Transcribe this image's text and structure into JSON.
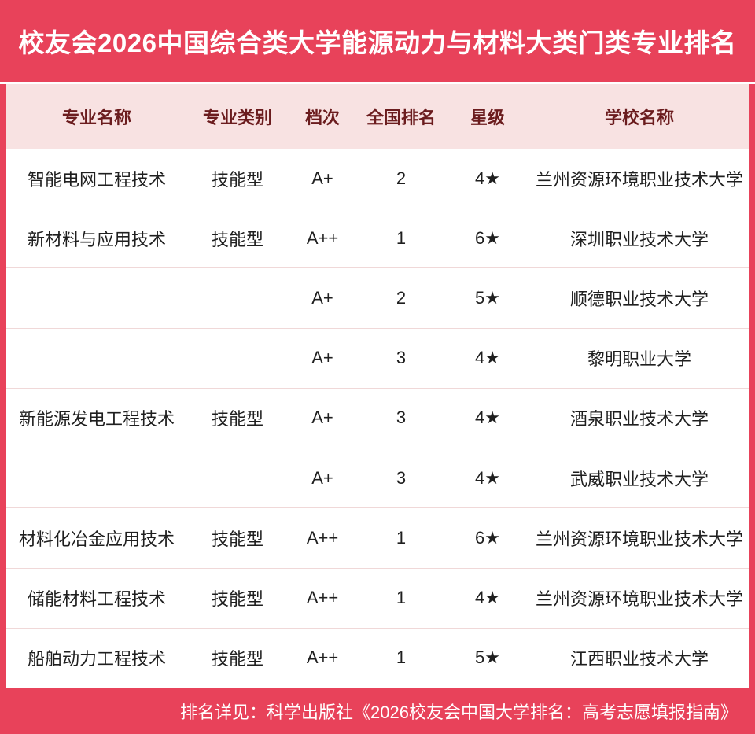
{
  "title": "校友会2026中国综合类大学能源动力与材料大类门类专业排名",
  "table": {
    "headers": [
      "专业名称",
      "专业类别",
      "档次",
      "全国排名",
      "星级",
      "学校名称"
    ],
    "rows": [
      [
        "智能电网工程技术",
        "技能型",
        "A+",
        "2",
        "4★",
        "兰州资源环境职业技术大学"
      ],
      [
        "新材料与应用技术",
        "技能型",
        "A++",
        "1",
        "6★",
        "深圳职业技术大学"
      ],
      [
        "",
        "",
        "A+",
        "2",
        "5★",
        "顺德职业技术大学"
      ],
      [
        "",
        "",
        "A+",
        "3",
        "4★",
        "黎明职业大学"
      ],
      [
        "新能源发电工程技术",
        "技能型",
        "A+",
        "3",
        "4★",
        "酒泉职业技术大学"
      ],
      [
        "",
        "",
        "A+",
        "3",
        "4★",
        "武威职业技术大学"
      ],
      [
        "材料化冶金应用技术",
        "技能型",
        "A++",
        "1",
        "6★",
        "兰州资源环境职业技术大学"
      ],
      [
        "储能材料工程技术",
        "技能型",
        "A++",
        "1",
        "4★",
        "兰州资源环境职业技术大学"
      ],
      [
        "船舶动力工程技术",
        "技能型",
        "A++",
        "1",
        "5★",
        "江西职业技术大学"
      ]
    ]
  },
  "footer": {
    "text": "排名详见：科学出版社《2026校友会中国大学排名：高考志愿填报指南》"
  },
  "colors": {
    "accent_red": "#E8425A",
    "header_pink": "#F8E2E2",
    "header_text_maroon": "#6B1C1E",
    "body_text": "#1F1F1F",
    "row_divider": "#F0D8D8",
    "title_text": "#FFFFFF"
  }
}
